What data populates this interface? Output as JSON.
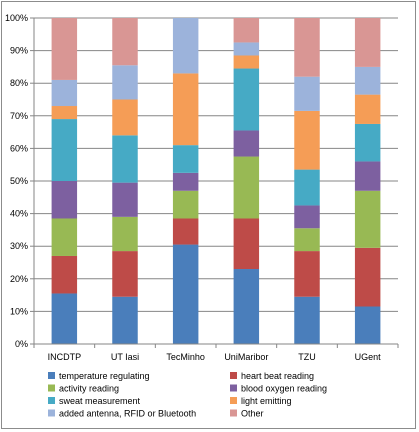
{
  "chart_data": {
    "type": "bar",
    "stacked": true,
    "percent_stacked": true,
    "categories": [
      "INCDTP",
      "UT Iasi",
      "TecMinho",
      "UniMaribor",
      "TZU",
      "UGent"
    ],
    "y_tick_labels": [
      "0%",
      "10%",
      "20%",
      "30%",
      "40%",
      "50%",
      "60%",
      "70%",
      "80%",
      "90%",
      "100%"
    ],
    "ylim": [
      0,
      100
    ],
    "grid": true,
    "legend_position": "bottom",
    "series": [
      {
        "name": "temperature regulating",
        "color": "#4a7ebb",
        "values": [
          15.5,
          14.5,
          30.5,
          23.0,
          14.5,
          11.5
        ]
      },
      {
        "name": "heart beat reading",
        "color": "#be4b48",
        "values": [
          11.5,
          14.0,
          8.0,
          15.5,
          14.0,
          18.0
        ]
      },
      {
        "name": "activity reading",
        "color": "#98b954",
        "values": [
          11.5,
          10.5,
          8.5,
          19.0,
          7.0,
          17.5
        ]
      },
      {
        "name": "blood oxygen reading",
        "color": "#7d60a0",
        "values": [
          11.5,
          10.5,
          5.5,
          8.0,
          7.0,
          9.0
        ]
      },
      {
        "name": "sweat measurement",
        "color": "#46aac5",
        "values": [
          19.0,
          14.5,
          8.5,
          19.0,
          11.0,
          11.5
        ]
      },
      {
        "name": "light emitting",
        "color": "#f59d56",
        "values": [
          4.0,
          11.0,
          22.0,
          4.0,
          18.0,
          9.0
        ]
      },
      {
        "name": "added antenna, RFID or Bluetooth",
        "color": "#9cb3db",
        "values": [
          8.0,
          10.5,
          17.0,
          4.0,
          10.5,
          8.5
        ]
      },
      {
        "name": "Other",
        "color": "#d99694",
        "values": [
          19.0,
          14.5,
          0.0,
          7.5,
          18.0,
          15.0
        ]
      }
    ]
  }
}
